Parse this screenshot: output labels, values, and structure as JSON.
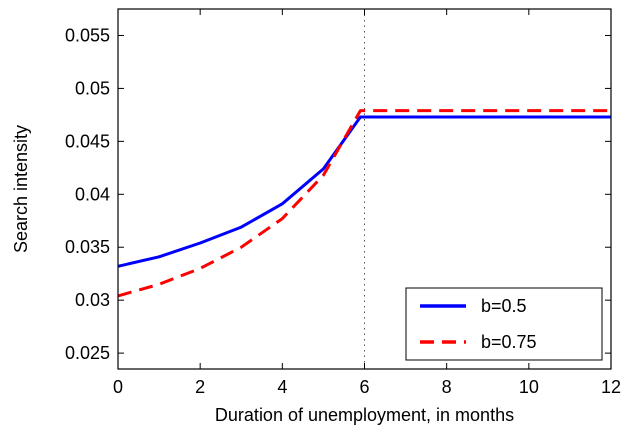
{
  "chart_data": {
    "type": "line",
    "xlabel": "Duration of unemployment, in months",
    "ylabel": "Search intensity",
    "xlim": [
      0,
      12
    ],
    "ylim": [
      0.0235,
      0.0575
    ],
    "xticks": [
      0,
      2,
      4,
      6,
      8,
      10,
      12
    ],
    "xtick_labels": [
      "0",
      "2",
      "4",
      "6",
      "8",
      "10",
      "12"
    ],
    "yticks": [
      0.025,
      0.03,
      0.035,
      0.04,
      0.045,
      0.05,
      0.055
    ],
    "ytick_labels": [
      "0.025",
      "0.03",
      "0.035",
      "0.04",
      "0.045",
      "0.05",
      "0.055"
    ],
    "vertical_reference_line": {
      "x": 6,
      "style": "dotted",
      "color": "#555555"
    },
    "grid": false,
    "legend_position": "bottom-right",
    "series": [
      {
        "name": "b=0.5",
        "color": "#0000ff",
        "style": "solid",
        "x": [
          0,
          1,
          2,
          3,
          4,
          5,
          5.9,
          6,
          7,
          8,
          9,
          10,
          11,
          12
        ],
        "y": [
          0.0332,
          0.0341,
          0.0354,
          0.0369,
          0.0391,
          0.0424,
          0.0473,
          0.0473,
          0.0473,
          0.0473,
          0.0473,
          0.0473,
          0.0473,
          0.0473
        ]
      },
      {
        "name": "b=0.75",
        "color": "#ff0000",
        "style": "dashed",
        "x": [
          0,
          1,
          2,
          3,
          4,
          5,
          5.9,
          6,
          7,
          8,
          9,
          10,
          11,
          12
        ],
        "y": [
          0.0304,
          0.0315,
          0.033,
          0.035,
          0.0377,
          0.0418,
          0.0479,
          0.0479,
          0.0479,
          0.0479,
          0.0479,
          0.0479,
          0.0479,
          0.0479
        ]
      }
    ]
  }
}
